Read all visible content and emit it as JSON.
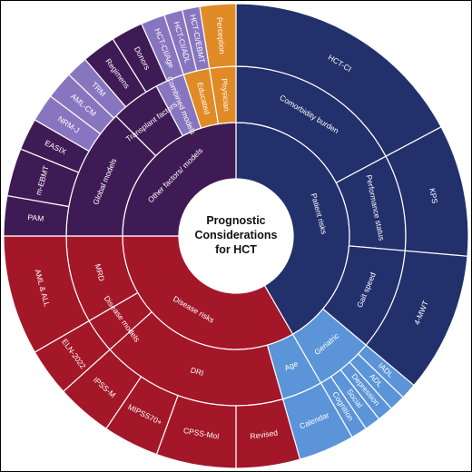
{
  "center": {
    "title_lines": [
      "Prognostic",
      "Considerations",
      "for HCT"
    ]
  },
  "colors": {
    "patient_risks": "#22306b",
    "geriatric": "#5b94d8",
    "disease_risks": "#a31729",
    "other_factors": "#3f1b55",
    "models_light": "#8776bf",
    "physician": "#e08b26",
    "divider": "#ffffff",
    "frame": "#000000"
  },
  "wheel": {
    "ring1": [
      {
        "label": "Patient risks",
        "color": "patient_risks"
      },
      {
        "label": "Disease risks",
        "color": "disease_risks"
      },
      {
        "label": "Other factors/ models",
        "color": "other_factors"
      }
    ],
    "ring2": [
      {
        "label": "Comorbidity burden",
        "color": "patient_risks"
      },
      {
        "label": "Performance status",
        "color": "patient_risks"
      },
      {
        "label": "Gait speed",
        "color": "patient_risks"
      },
      {
        "label": "Geriatric",
        "color": "geriatric"
      },
      {
        "label": "Age",
        "color": "geriatric"
      },
      {
        "label": "DRI",
        "color": "disease_risks"
      },
      {
        "label": "Disease models",
        "color": "disease_risks"
      },
      {
        "label": "MRD",
        "color": "disease_risks"
      },
      {
        "label": "Global models",
        "color": "other_factors"
      },
      {
        "label": "Transplant factors",
        "color": "other_factors"
      },
      {
        "label": "Combined models",
        "color": "models_light"
      },
      {
        "label": "Educated",
        "color": "physician"
      },
      {
        "label": "Physician",
        "color": "physician"
      }
    ],
    "ring3": [
      {
        "label": "HCT-CI",
        "color": "patient_risks"
      },
      {
        "label": "KPS",
        "color": "patient_risks"
      },
      {
        "label": "4-MWT",
        "color": "patient_risks"
      },
      {
        "label": "IADL",
        "color": "geriatric"
      },
      {
        "label": "ADL",
        "color": "geriatric"
      },
      {
        "label": "Depression",
        "color": "geriatric"
      },
      {
        "label": "Social",
        "color": "geriatric"
      },
      {
        "label": "Cognition",
        "color": "geriatric"
      },
      {
        "label": "Calendar",
        "color": "geriatric"
      },
      {
        "label": "Revised",
        "color": "disease_risks"
      },
      {
        "label": "CPSS-Mol",
        "color": "disease_risks"
      },
      {
        "label": "MIPSS70+",
        "color": "disease_risks"
      },
      {
        "label": "IPSS-M",
        "color": "disease_risks"
      },
      {
        "label": "ELN-2022",
        "color": "disease_risks"
      },
      {
        "label": "AML & ALL",
        "color": "disease_risks"
      },
      {
        "label": "PAM",
        "color": "other_factors"
      },
      {
        "label": "m-EBMT",
        "color": "other_factors"
      },
      {
        "label": "EASIX",
        "color": "other_factors"
      },
      {
        "label": "NRM-J",
        "color": "models_light"
      },
      {
        "label": "AML-CM",
        "color": "models_light"
      },
      {
        "label": "TRM",
        "color": "models_light"
      },
      {
        "label": "Regimens",
        "color": "other_factors"
      },
      {
        "label": "Donors",
        "color": "other_factors"
      },
      {
        "label": "HCT-CI/Age",
        "color": "models_light"
      },
      {
        "label": "HCT-CI/ADL",
        "color": "models_light"
      },
      {
        "label": "HCT-CI/EBMT",
        "color": "models_light"
      },
      {
        "label": "Perception",
        "color": "physician"
      }
    ]
  }
}
